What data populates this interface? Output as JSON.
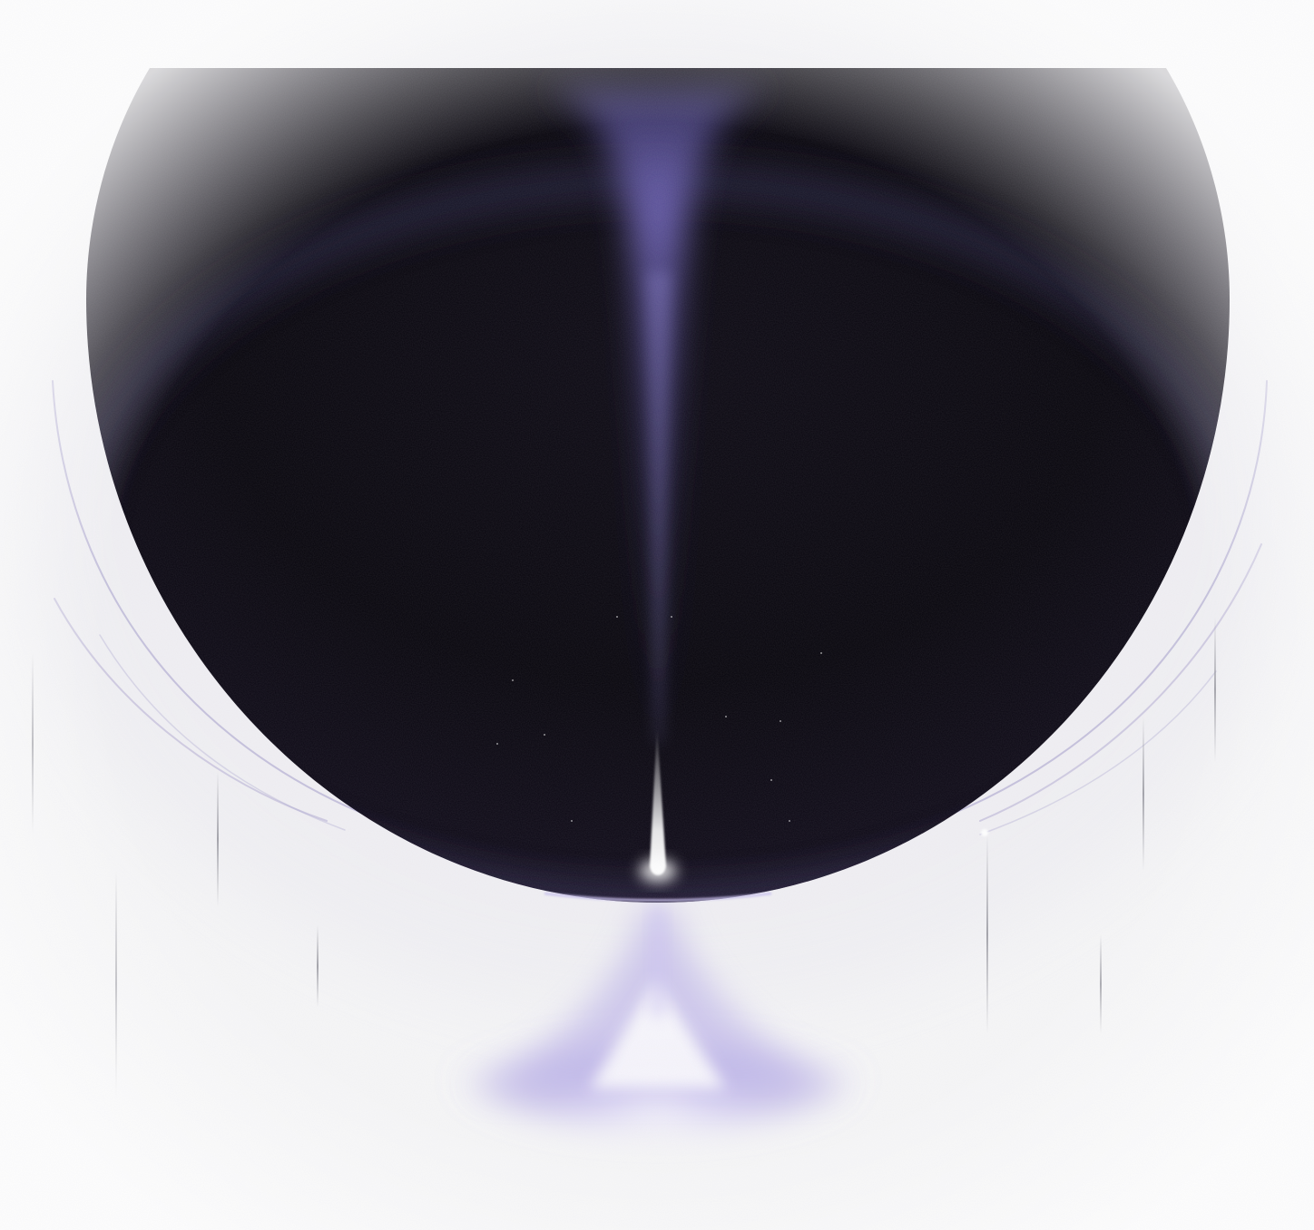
{
  "scene": {
    "description_text": "",
    "palette": {
      "page_background": "#f6f6f7",
      "orb_dark": "#050308",
      "orb_mid": "#0c0818",
      "beam_violet": "#6c61b4",
      "beam_light": "#b8b0ea",
      "horizon_red": "#7e3940",
      "horizon_pink": "#d9a6b4",
      "flare_white": "#ffffff",
      "lower_glow": "#a79be0",
      "ring_line": "#b2acd2",
      "drip_line": "#9f9fa6"
    },
    "elements": {
      "orb": "dark-sphere",
      "beam": "vertical-light-beam",
      "flare": "horizon-flare",
      "reflection": "lower-glow-cone",
      "rings": "orbit-arcs",
      "drips": "vertical-light-streaks"
    }
  }
}
